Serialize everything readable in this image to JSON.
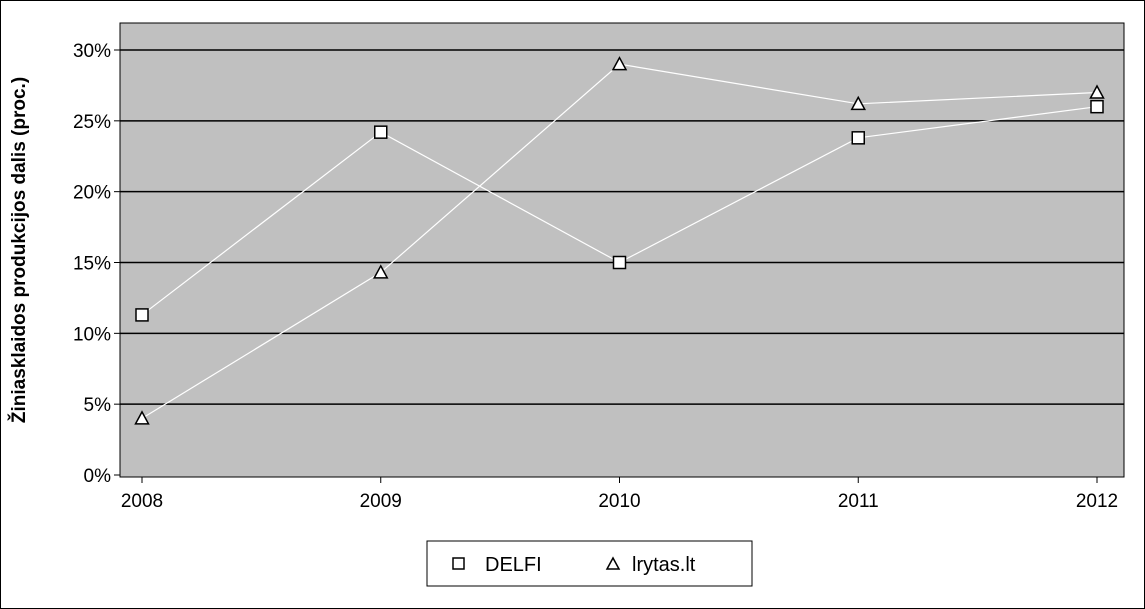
{
  "chart_data": {
    "type": "line",
    "title": "",
    "xlabel": "",
    "ylabel": "Žiniasklaidos produkcijos dalis (proc.)",
    "categories": [
      "2008",
      "2009",
      "2010",
      "2011",
      "2012"
    ],
    "ylim": [
      0,
      30
    ],
    "yticks": [
      0,
      5,
      10,
      15,
      20,
      25,
      30
    ],
    "ytick_labels": [
      "0%",
      "5%",
      "10%",
      "15%",
      "20%",
      "25%",
      "30%"
    ],
    "grid": true,
    "legend_position": "bottom-center",
    "colors": {
      "plot_background": "#c0c0c0",
      "gridline": "#000000",
      "series_line": "#ffffff",
      "marker_fill": "#ffffff",
      "marker_stroke": "#000000"
    },
    "series": [
      {
        "name": "DELFI",
        "marker": "square",
        "values": [
          11.3,
          24.2,
          15.0,
          23.8,
          26.0
        ]
      },
      {
        "name": "lrytas.lt",
        "marker": "triangle",
        "values": [
          4.0,
          14.3,
          29.0,
          26.2,
          27.0
        ]
      }
    ]
  }
}
